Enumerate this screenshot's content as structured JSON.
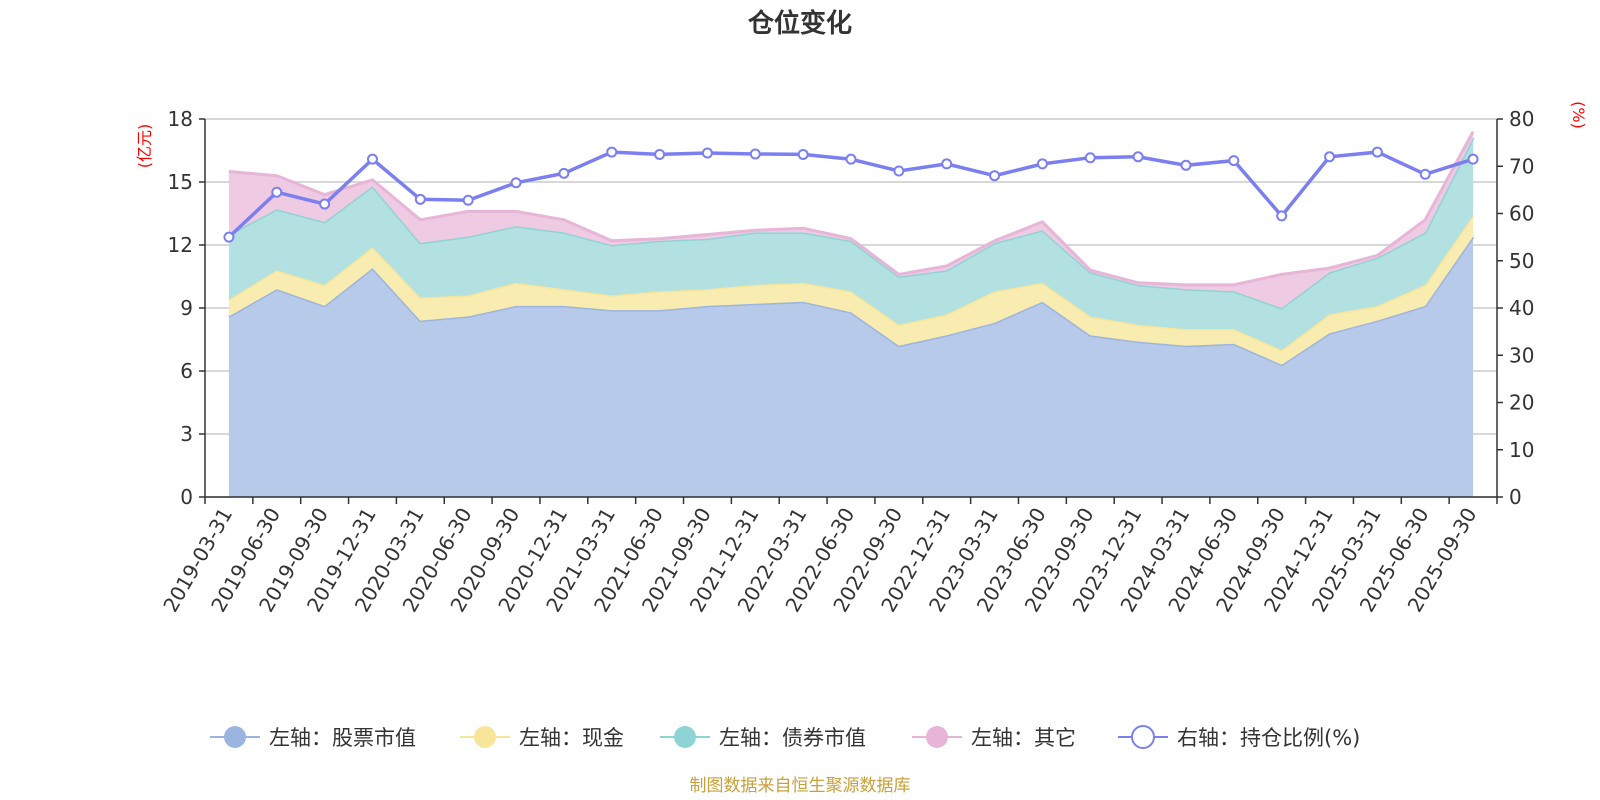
{
  "chart_data": {
    "type": "area",
    "title": "仓位变化",
    "left_axis": {
      "unit_label": "(亿元)",
      "ylim": [
        0,
        18
      ],
      "ticks": [
        0,
        3,
        6,
        9,
        12,
        15,
        18
      ]
    },
    "right_axis": {
      "unit_label": "(%)",
      "ylim": [
        0,
        80
      ],
      "ticks": [
        0,
        10,
        20,
        30,
        40,
        50,
        60,
        70,
        80
      ]
    },
    "x_tick_labels": [
      "2019-03-31",
      "2019-06-30",
      "2019-09-30",
      "2019-12-31",
      "2020-03-31",
      "2020-06-30",
      "2020-09-30",
      "2020-12-31",
      "2021-03-31",
      "2021-06-30",
      "2021-09-30",
      "2021-12-31",
      "2022-03-31",
      "2022-06-30",
      "2022-09-30",
      "2022-12-31",
      "2023-03-31",
      "2023-06-30",
      "2023-09-30",
      "2023-12-31",
      "2024-03-31",
      "2024-06-30",
      "2024-09-30",
      "2024-12-31",
      "2025-03-31",
      "2025-06-30",
      "2025-09-30"
    ],
    "categories": [
      "2019-03-31",
      "2019-06-30",
      "2019-09-30",
      "2019-12-31",
      "2020-03-31",
      "2020-06-30",
      "2020-09-30",
      "2020-12-31",
      "2021-03-31",
      "2021-06-30",
      "2021-09-30",
      "2021-12-31",
      "2022-03-31",
      "2022-06-30",
      "2022-09-30",
      "2022-12-31",
      "2023-03-31",
      "2023-06-30",
      "2023-09-30",
      "2023-12-31",
      "2024-03-31",
      "2024-06-30",
      "2024-09-30",
      "2024-12-31",
      "2025-03-31",
      "2025-06-30",
      "2025-09-30"
    ],
    "series": [
      {
        "name": "左轴：股票市值",
        "axis": "left",
        "stacked": true,
        "color": "#9bb5e0",
        "fill": "#b7caea",
        "values": [
          8.6,
          9.9,
          9.1,
          10.9,
          8.4,
          8.6,
          9.1,
          9.1,
          8.9,
          8.9,
          9.1,
          9.2,
          9.3,
          8.8,
          7.2,
          7.7,
          8.3,
          9.3,
          7.7,
          7.4,
          7.2,
          7.3,
          6.3,
          7.8,
          8.4,
          9.1,
          12.4
        ]
      },
      {
        "name": "左轴：现金",
        "axis": "left",
        "stacked": true,
        "color": "#f7e59a",
        "fill": "#f9ecb0",
        "values": [
          0.8,
          0.9,
          1.0,
          1.0,
          1.1,
          1.0,
          1.1,
          0.8,
          0.7,
          0.9,
          0.8,
          0.9,
          0.9,
          1.0,
          1.0,
          1.0,
          1.5,
          0.9,
          0.9,
          0.8,
          0.8,
          0.7,
          0.7,
          0.9,
          0.7,
          1.0,
          1.0
        ]
      },
      {
        "name": "左轴：债券市值",
        "axis": "left",
        "stacked": true,
        "color": "#8fd4d4",
        "fill": "#b3e0e0",
        "values": [
          3.1,
          2.9,
          3.0,
          2.9,
          2.6,
          2.8,
          2.7,
          2.7,
          2.4,
          2.4,
          2.4,
          2.5,
          2.4,
          2.4,
          2.3,
          2.1,
          2.3,
          2.5,
          2.1,
          1.9,
          1.9,
          1.8,
          2.0,
          2.0,
          2.3,
          2.5,
          3.7
        ]
      },
      {
        "name": "左轴：其它",
        "axis": "left",
        "stacked": true,
        "color": "#e7b5d8",
        "fill": "#efcbe3",
        "values": [
          3.0,
          1.6,
          1.3,
          0.3,
          1.1,
          1.2,
          0.7,
          0.6,
          0.2,
          0.1,
          0.2,
          0.1,
          0.2,
          0.1,
          0.1,
          0.2,
          0.1,
          0.4,
          0.1,
          0.1,
          0.2,
          0.3,
          1.6,
          0.2,
          0.1,
          0.6,
          0.3
        ]
      },
      {
        "name": "右轴：持仓比例(%)",
        "axis": "right",
        "stacked": false,
        "color": "#7b7ff0",
        "values": [
          55.0,
          64.5,
          62.0,
          71.5,
          63.0,
          62.8,
          66.5,
          68.5,
          73.0,
          72.5,
          72.8,
          72.6,
          72.5,
          71.5,
          69.0,
          70.5,
          68.0,
          70.5,
          71.8,
          72.0,
          70.2,
          71.2,
          59.5,
          72.0,
          73.0,
          68.3,
          71.5
        ]
      }
    ],
    "legend_position": "bottom",
    "grid": true
  },
  "footer_text": "制图数据来自恒生聚源数据库"
}
